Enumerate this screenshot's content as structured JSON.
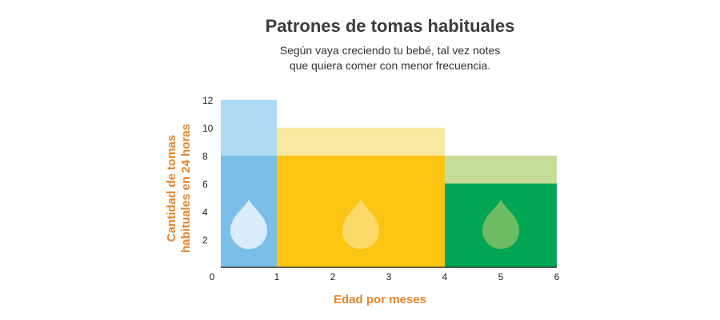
{
  "title": "Patrones de tomas habituales",
  "subtitle_lines": [
    "Según vaya creciendo tu bebé, tal vez notes",
    "que quiera comer con menor frecuencia."
  ],
  "chart_data": {
    "type": "bar",
    "xlabel": "Edad por meses",
    "ylabel_lines": [
      "Cantidad de tomas",
      "habituales en 24 horas"
    ],
    "xlim": [
      0,
      6
    ],
    "ylim": [
      0,
      12
    ],
    "x_ticks": [
      0,
      1,
      2,
      3,
      4,
      5,
      6
    ],
    "y_ticks": [
      2,
      4,
      6,
      8,
      10,
      12
    ],
    "grid": false,
    "bins": [
      {
        "x_start": 0,
        "x_end": 1,
        "min_feeds": 8,
        "max_feeds": 12
      },
      {
        "x_start": 1,
        "x_end": 4,
        "min_feeds": 8,
        "max_feeds": 10
      },
      {
        "x_start": 4,
        "x_end": 6,
        "min_feeds": 6,
        "max_feeds": 8
      }
    ],
    "colors": {
      "bin_0": {
        "range": "#aedaf6",
        "base": "#7bbfe9",
        "drop": "#d8ecfb"
      },
      "bin_1": {
        "range": "#f9e8a0",
        "base": "#fcc413",
        "drop": "#fdd96a"
      },
      "bin_2": {
        "range": "#c6dd9a",
        "base": "#00a651",
        "drop": "#6dbb63"
      },
      "axis": "#333333",
      "axis_label": "#e8852a"
    }
  }
}
